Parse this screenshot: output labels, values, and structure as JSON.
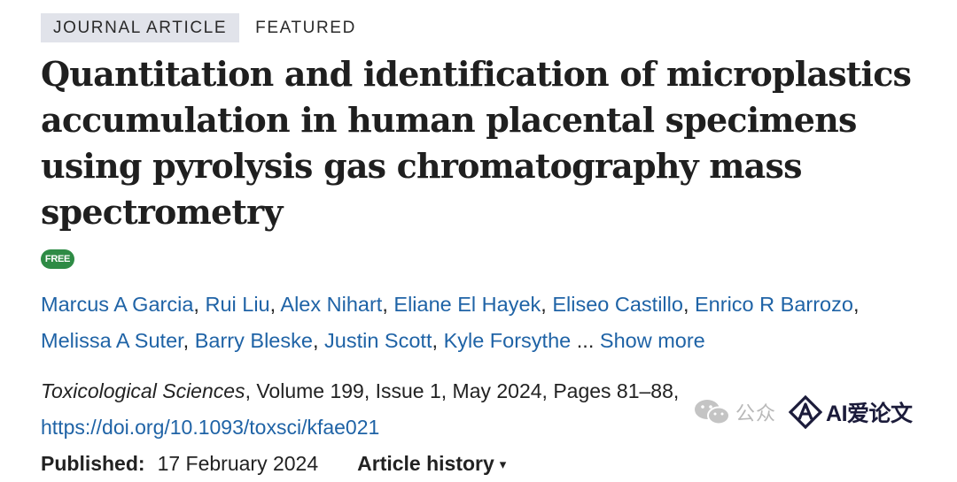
{
  "tags": {
    "journal_article": "JOURNAL ARTICLE",
    "featured": "FEATURED"
  },
  "article": {
    "title": "Quantitation and identification of microplastics accumulation in human placental specimens using pyrolysis gas chromatography mass spectrometry",
    "access_badge": "FREE",
    "authors": [
      "Marcus A Garcia",
      "Rui Liu",
      "Alex Nihart",
      "Eliane El Hayek",
      "Eliseo Castillo",
      "Enrico R Barrozo",
      "Melissa A Suter",
      "Barry Bleske",
      "Justin Scott",
      "Kyle Forsythe"
    ],
    "authors_ellipsis": "...",
    "show_more_label": "Show more",
    "journal_name": "Toxicological Sciences",
    "citation_details": ", Volume 199, Issue 1, May 2024, Pages 81–88,",
    "doi": "https://doi.org/10.1093/toxsci/kfae021",
    "published_label": "Published:",
    "published_date": "17 February 2024",
    "history_label": "Article history",
    "history_caret": "▾"
  },
  "watermark": {
    "gzh_text": "公众",
    "brand_text": "AI爱论文"
  },
  "colors": {
    "link": "#1f63a6",
    "badge_green": "#2e8b45",
    "tag_bg": "#e1e3ea"
  }
}
